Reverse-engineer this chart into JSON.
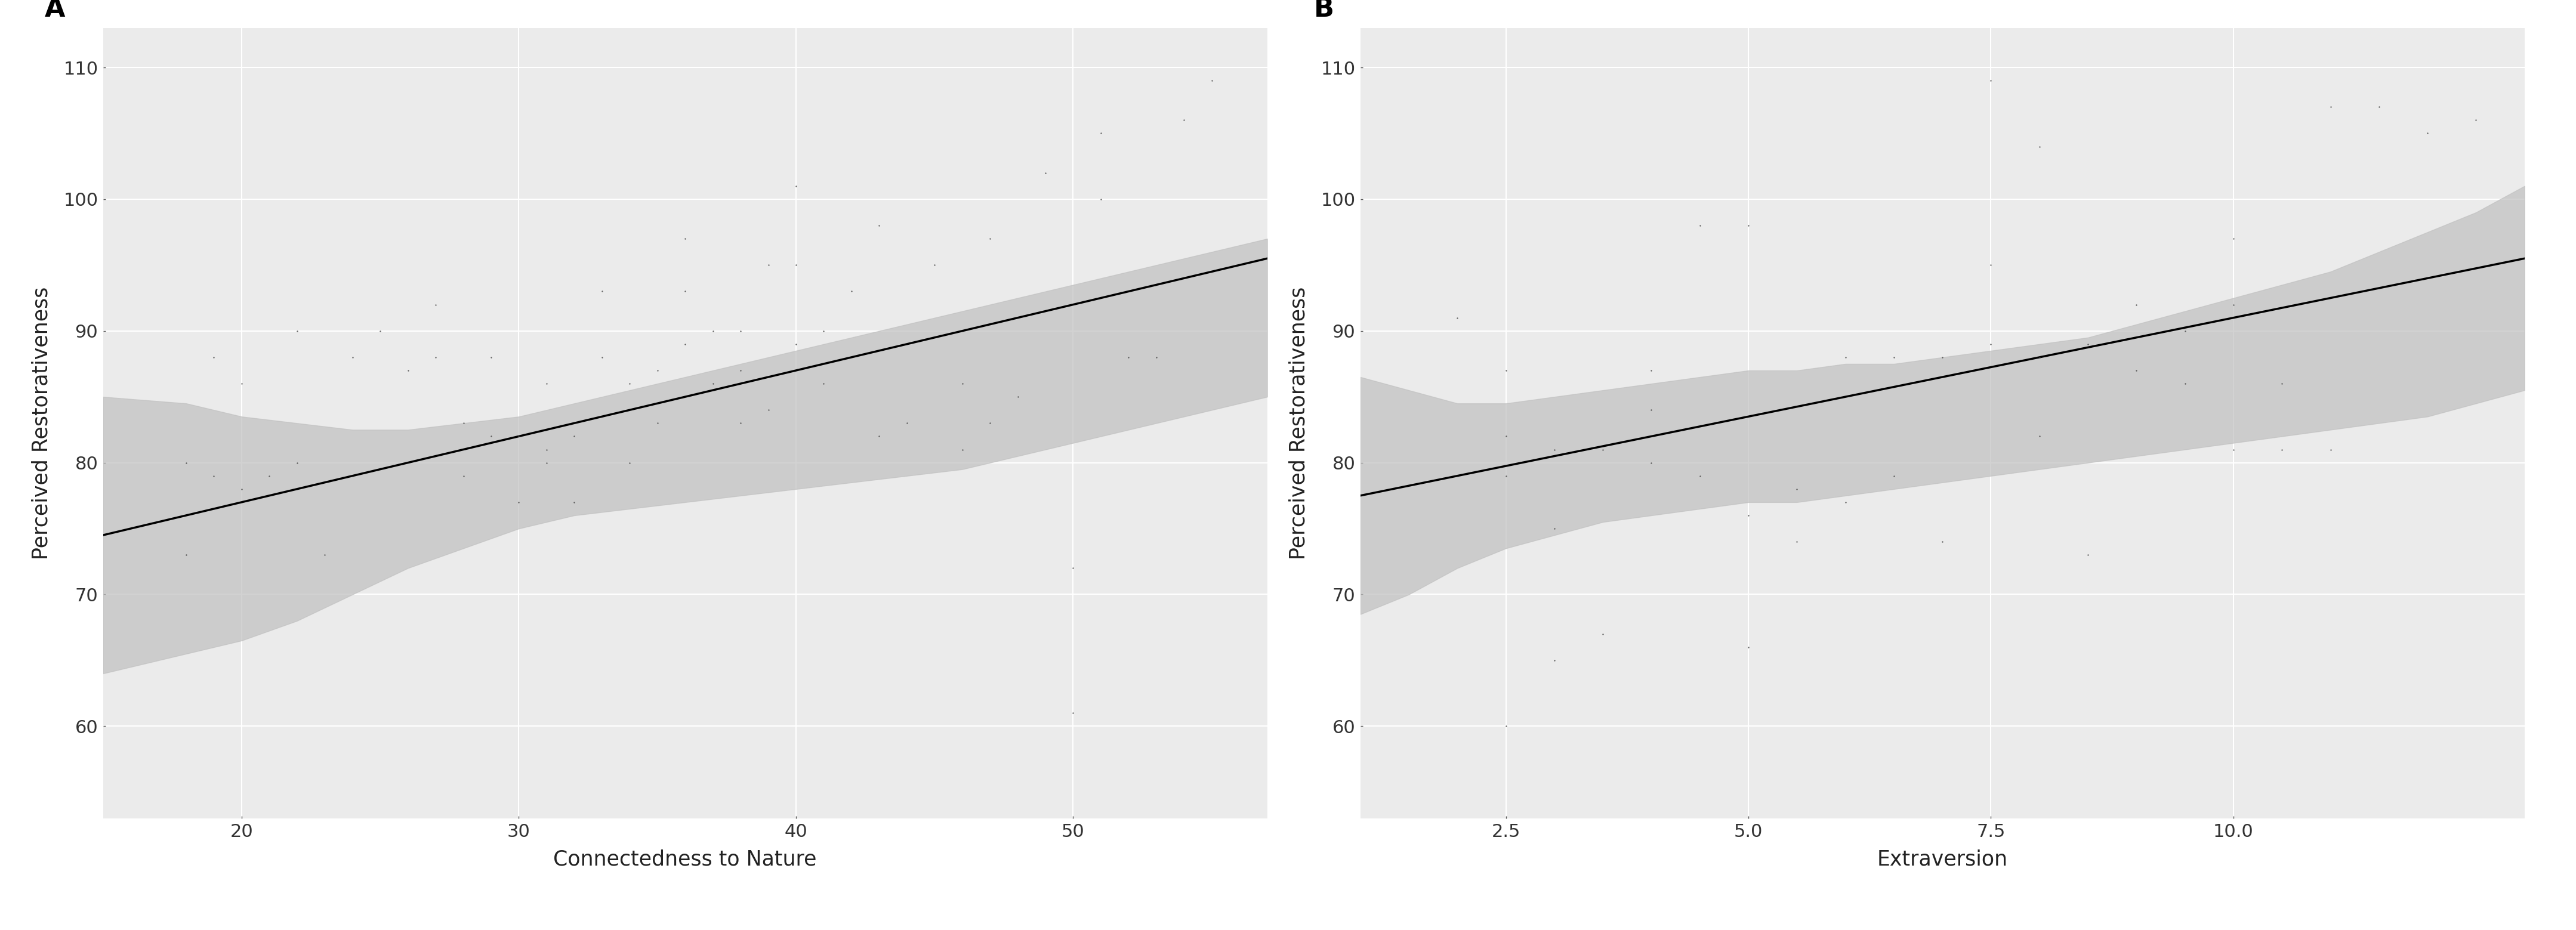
{
  "panel_A": {
    "label": "A",
    "xlabel": "Connectedness to Nature",
    "ylabel": "Perceived Restorativeness",
    "xlim": [
      15,
      57
    ],
    "ylim": [
      53,
      113
    ],
    "xticks": [
      20,
      30,
      40,
      50
    ],
    "yticks": [
      60,
      70,
      80,
      90,
      100,
      110
    ],
    "line_x": [
      15,
      57
    ],
    "line_y": [
      74.5,
      95.5
    ],
    "ci_x": [
      15,
      18,
      20,
      22,
      24,
      26,
      28,
      30,
      32,
      34,
      36,
      38,
      40,
      42,
      44,
      46,
      48,
      50,
      52,
      54,
      56,
      57
    ],
    "ci_upper": [
      85.0,
      84.5,
      83.5,
      83.0,
      82.5,
      82.5,
      83.0,
      83.5,
      84.5,
      85.5,
      86.5,
      87.5,
      88.5,
      89.5,
      90.5,
      91.5,
      92.5,
      93.5,
      94.5,
      95.5,
      96.5,
      97.0
    ],
    "ci_lower": [
      64.0,
      65.5,
      66.5,
      68.0,
      70.0,
      72.0,
      73.5,
      75.0,
      76.0,
      76.5,
      77.0,
      77.5,
      78.0,
      78.5,
      79.0,
      79.5,
      80.5,
      81.5,
      82.5,
      83.5,
      84.5,
      85.0
    ],
    "scatter_x": [
      18,
      18,
      19,
      19,
      20,
      20,
      21,
      22,
      22,
      23,
      24,
      25,
      26,
      27,
      27,
      28,
      28,
      29,
      29,
      30,
      30,
      31,
      31,
      31,
      32,
      32,
      33,
      33,
      34,
      34,
      35,
      35,
      36,
      36,
      36,
      37,
      37,
      38,
      38,
      38,
      39,
      39,
      40,
      40,
      40,
      41,
      41,
      42,
      43,
      43,
      44,
      45,
      46,
      46,
      47,
      47,
      48,
      49,
      50,
      50,
      51,
      51,
      52,
      53,
      54,
      55
    ],
    "scatter_y": [
      73,
      80,
      79,
      88,
      78,
      86,
      79,
      80,
      90,
      73,
      88,
      90,
      87,
      88,
      92,
      79,
      83,
      82,
      88,
      77,
      82,
      80,
      81,
      86,
      77,
      82,
      88,
      93,
      80,
      86,
      83,
      87,
      89,
      93,
      97,
      86,
      90,
      83,
      87,
      90,
      84,
      95,
      89,
      95,
      101,
      86,
      90,
      93,
      82,
      98,
      83,
      95,
      81,
      86,
      83,
      97,
      85,
      102,
      61,
      72,
      100,
      105,
      88,
      88,
      106,
      109
    ]
  },
  "panel_B": {
    "label": "B",
    "xlabel": "Extraversion",
    "ylabel": "Perceived Restorativeness",
    "xlim": [
      1.0,
      13.0
    ],
    "ylim": [
      53,
      113
    ],
    "xticks": [
      2.5,
      5.0,
      7.5,
      10.0
    ],
    "yticks": [
      60,
      70,
      80,
      90,
      100,
      110
    ],
    "line_x": [
      1.0,
      13.0
    ],
    "line_y": [
      77.5,
      95.5
    ],
    "ci_x": [
      1.0,
      1.5,
      2.0,
      2.5,
      3.0,
      3.5,
      4.0,
      4.5,
      5.0,
      5.5,
      6.0,
      6.5,
      7.0,
      7.5,
      8.0,
      8.5,
      9.0,
      9.5,
      10.0,
      10.5,
      11.0,
      11.5,
      12.0,
      12.5,
      13.0
    ],
    "ci_upper": [
      86.5,
      85.5,
      84.5,
      84.5,
      85.0,
      85.5,
      86.0,
      86.5,
      87.0,
      87.0,
      87.5,
      87.5,
      88.0,
      88.5,
      89.0,
      89.5,
      90.5,
      91.5,
      92.5,
      93.5,
      94.5,
      96.0,
      97.5,
      99.0,
      101.0
    ],
    "ci_lower": [
      68.5,
      70.0,
      72.0,
      73.5,
      74.5,
      75.5,
      76.0,
      76.5,
      77.0,
      77.0,
      77.5,
      78.0,
      78.5,
      79.0,
      79.5,
      80.0,
      80.5,
      81.0,
      81.5,
      82.0,
      82.5,
      83.0,
      83.5,
      84.5,
      85.5
    ],
    "scatter_x": [
      2.0,
      2.5,
      2.5,
      2.5,
      2.5,
      3.0,
      3.0,
      3.0,
      3.5,
      3.5,
      4.0,
      4.0,
      4.0,
      4.5,
      4.5,
      5.0,
      5.0,
      5.0,
      5.5,
      5.5,
      6.0,
      6.0,
      6.5,
      6.5,
      7.0,
      7.0,
      7.5,
      7.5,
      7.5,
      8.0,
      8.0,
      8.0,
      8.5,
      8.5,
      9.0,
      9.0,
      9.5,
      9.5,
      10.0,
      10.0,
      10.0,
      10.5,
      10.5,
      11.0,
      11.0,
      11.5,
      12.0,
      12.5
    ],
    "scatter_y": [
      91,
      79,
      82,
      87,
      60,
      81,
      65,
      75,
      81,
      67,
      80,
      84,
      87,
      79,
      98,
      66,
      76,
      98,
      78,
      74,
      77,
      88,
      79,
      88,
      74,
      88,
      89,
      95,
      109,
      82,
      88,
      104,
      73,
      89,
      87,
      92,
      86,
      90,
      81,
      92,
      97,
      81,
      86,
      81,
      107,
      107,
      105,
      106
    ]
  },
  "bg_color": "#ebebeb",
  "grid_color": "#ffffff",
  "scatter_color": "#404040",
  "line_color": "#000000",
  "ci_color": "#c0c0c0",
  "ci_alpha": 0.7
}
